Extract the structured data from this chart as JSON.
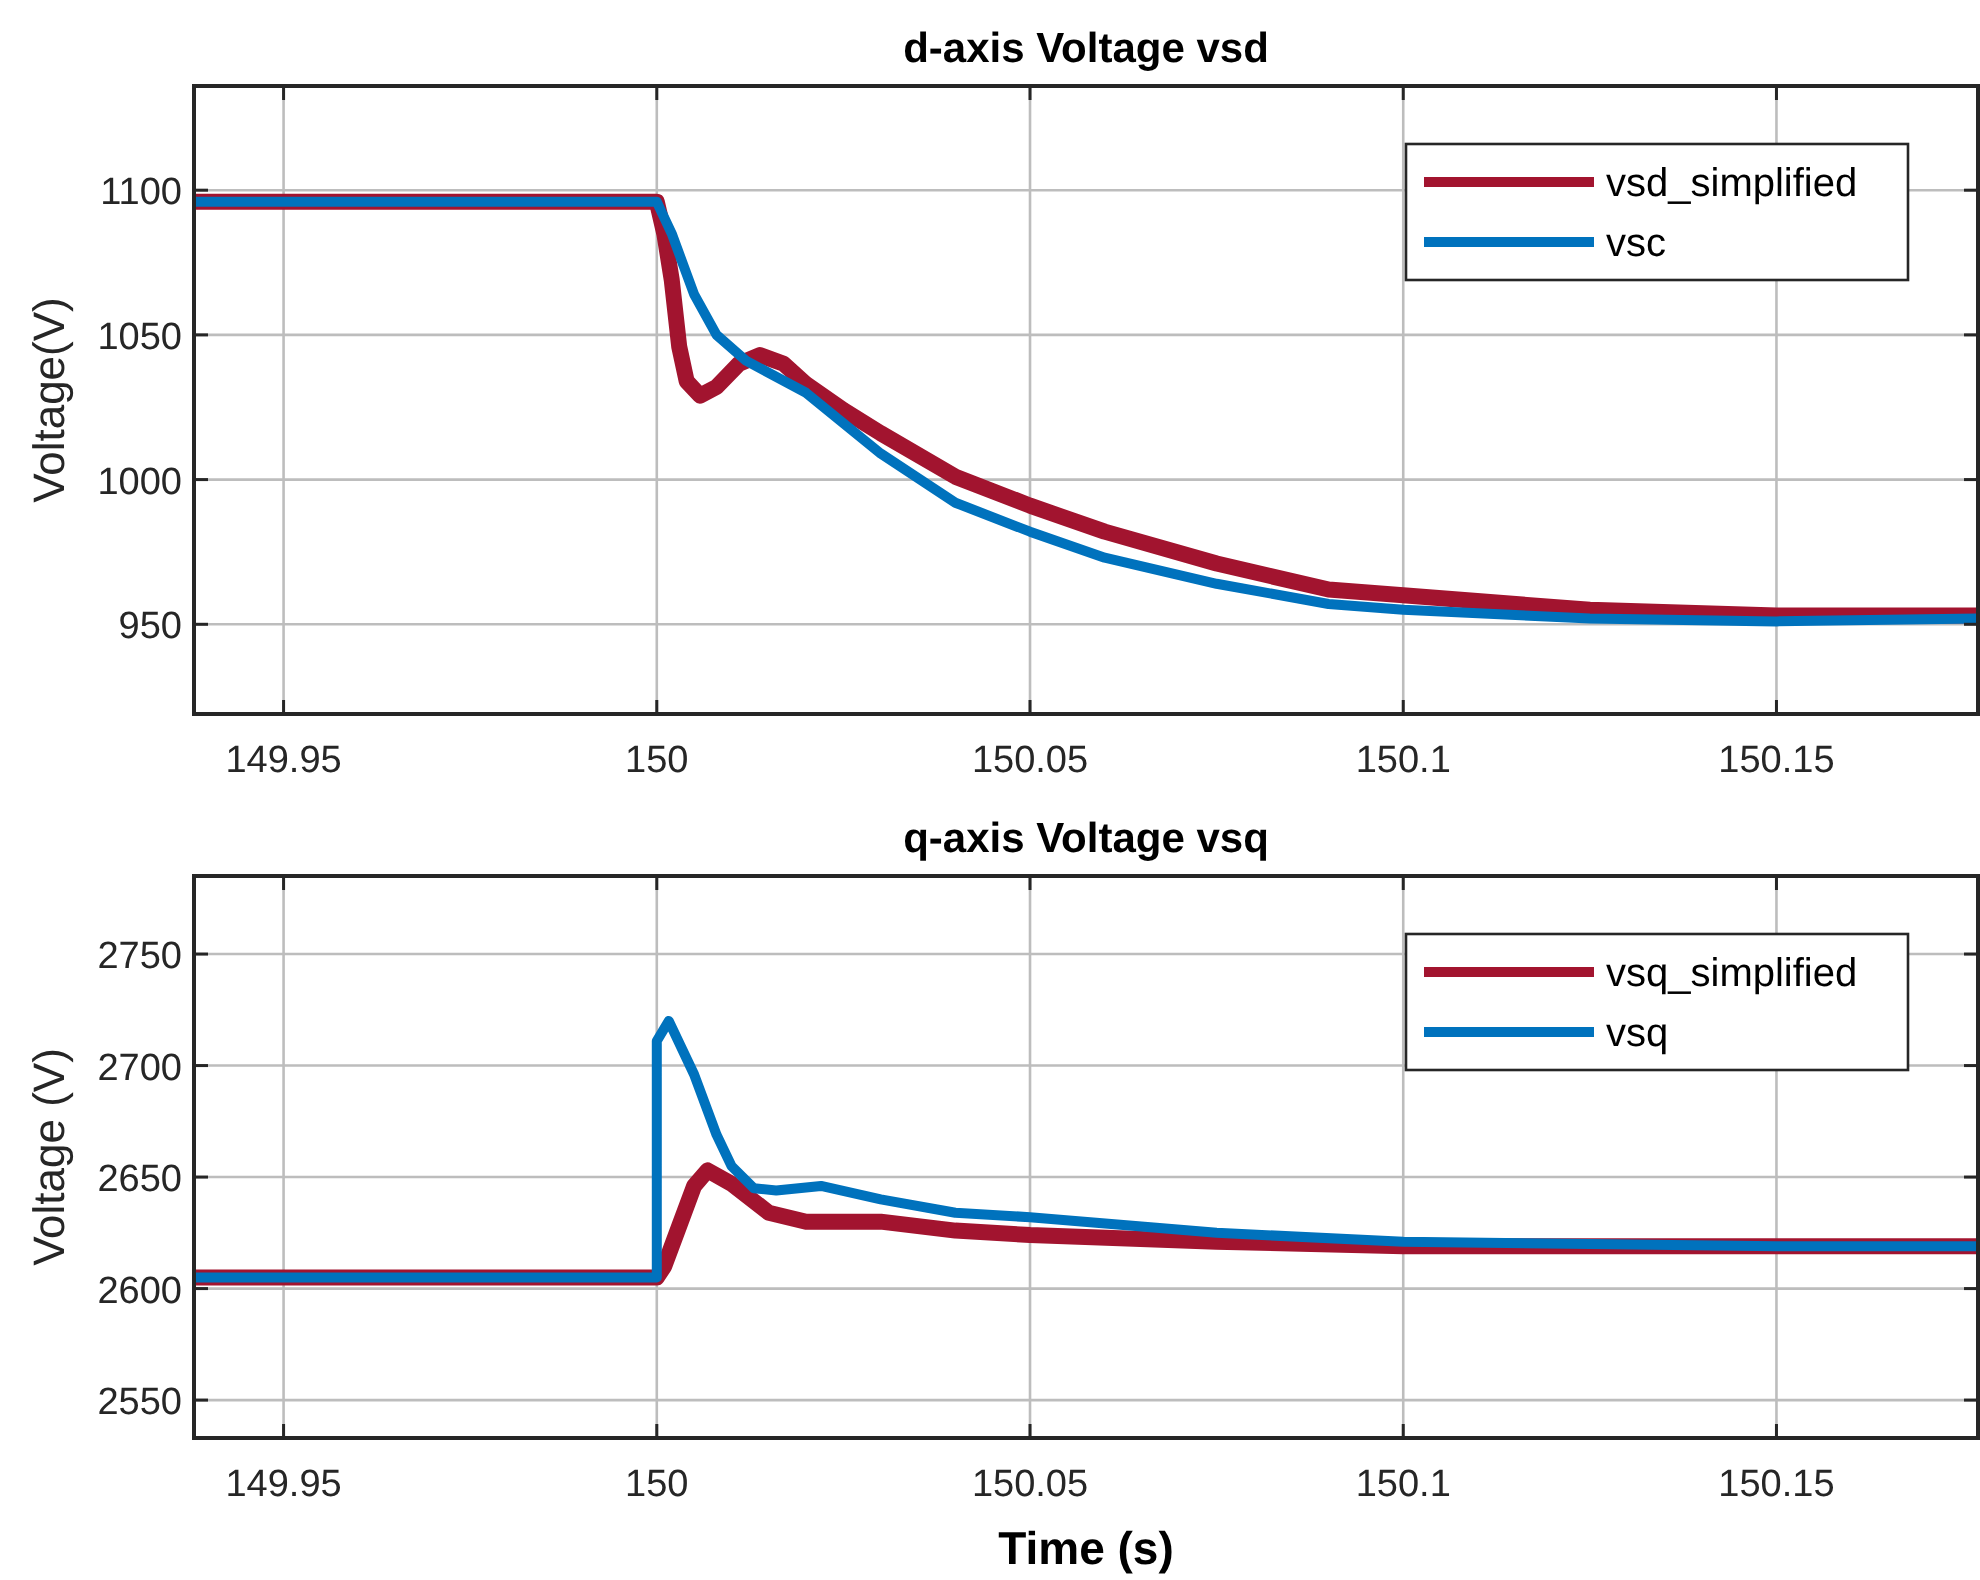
{
  "chart_data": [
    {
      "type": "line",
      "title": "d-axis Voltage vsd",
      "ylabel": "Voltage(V)",
      "xlim": [
        149.938,
        150.177
      ],
      "xticks": [
        149.95,
        150,
        150.05,
        150.1,
        150.15
      ],
      "ylim": [
        919,
        1136
      ],
      "yticks": [
        950,
        1000,
        1050,
        1100
      ],
      "grid": true,
      "legend": "top right",
      "series": [
        {
          "name": "vsd_simplified",
          "color": "#a2142f",
          "x": [
            149.938,
            150,
            150.001,
            150.002,
            150.003,
            150.004,
            150.0058,
            150.008,
            150.011,
            150.0138,
            150.017,
            150.02,
            150.025,
            150.03,
            150.04,
            150.05,
            150.06,
            150.075,
            150.09,
            150.1,
            150.125,
            150.15,
            150.177
          ],
          "values": [
            1096,
            1096,
            1085,
            1069,
            1046,
            1034,
            1029,
            1032,
            1040,
            1043,
            1040,
            1033,
            1024,
            1016,
            1001,
            991,
            982,
            971,
            962,
            960,
            955,
            953,
            953
          ]
        },
        {
          "name": "vsc",
          "color": "#0072bd",
          "x": [
            149.938,
            150,
            150.002,
            150.005,
            150.008,
            150.012,
            150.02,
            150.03,
            150.04,
            150.05,
            150.06,
            150.075,
            150.09,
            150.1,
            150.125,
            150.15,
            150.177
          ],
          "values": [
            1096,
            1096,
            1085,
            1064,
            1050,
            1041,
            1030,
            1009,
            992,
            982,
            973,
            964,
            957,
            955,
            952,
            951,
            952
          ]
        }
      ]
    },
    {
      "type": "line",
      "title": "q-axis Voltage vsq",
      "xlabel": "Time (s)",
      "ylabel": "Voltage (V)",
      "xlim": [
        149.938,
        150.177
      ],
      "xticks": [
        149.95,
        150,
        150.05,
        150.1,
        150.15
      ],
      "ylim": [
        2533,
        2785
      ],
      "yticks": [
        2550,
        2600,
        2650,
        2700,
        2750
      ],
      "grid": true,
      "legend": "top right",
      "series": [
        {
          "name": "vsq_simplified",
          "color": "#a2142f",
          "x": [
            149.938,
            150,
            150.001,
            150.003,
            150.005,
            150.0068,
            150.01,
            150.015,
            150.02,
            150.03,
            150.04,
            150.05,
            150.075,
            150.1,
            150.15,
            150.177
          ],
          "values": [
            2605,
            2605,
            2610,
            2628,
            2646,
            2653,
            2647,
            2634,
            2630,
            2630,
            2626,
            2624,
            2621,
            2619,
            2619,
            2619
          ]
        },
        {
          "name": "vsq",
          "color": "#0072bd",
          "x": [
            149.938,
            150,
            150,
            150.0016,
            150.005,
            150.008,
            150.01,
            150.013,
            150.016,
            150.022,
            150.03,
            150.04,
            150.05,
            150.075,
            150.1,
            150.125,
            150.15,
            150.177
          ],
          "values": [
            2605,
            2605,
            2711,
            2720,
            2696,
            2669,
            2655,
            2645,
            2644,
            2646,
            2640,
            2634,
            2632,
            2625,
            2621,
            2620,
            2619,
            2619
          ]
        }
      ]
    }
  ]
}
